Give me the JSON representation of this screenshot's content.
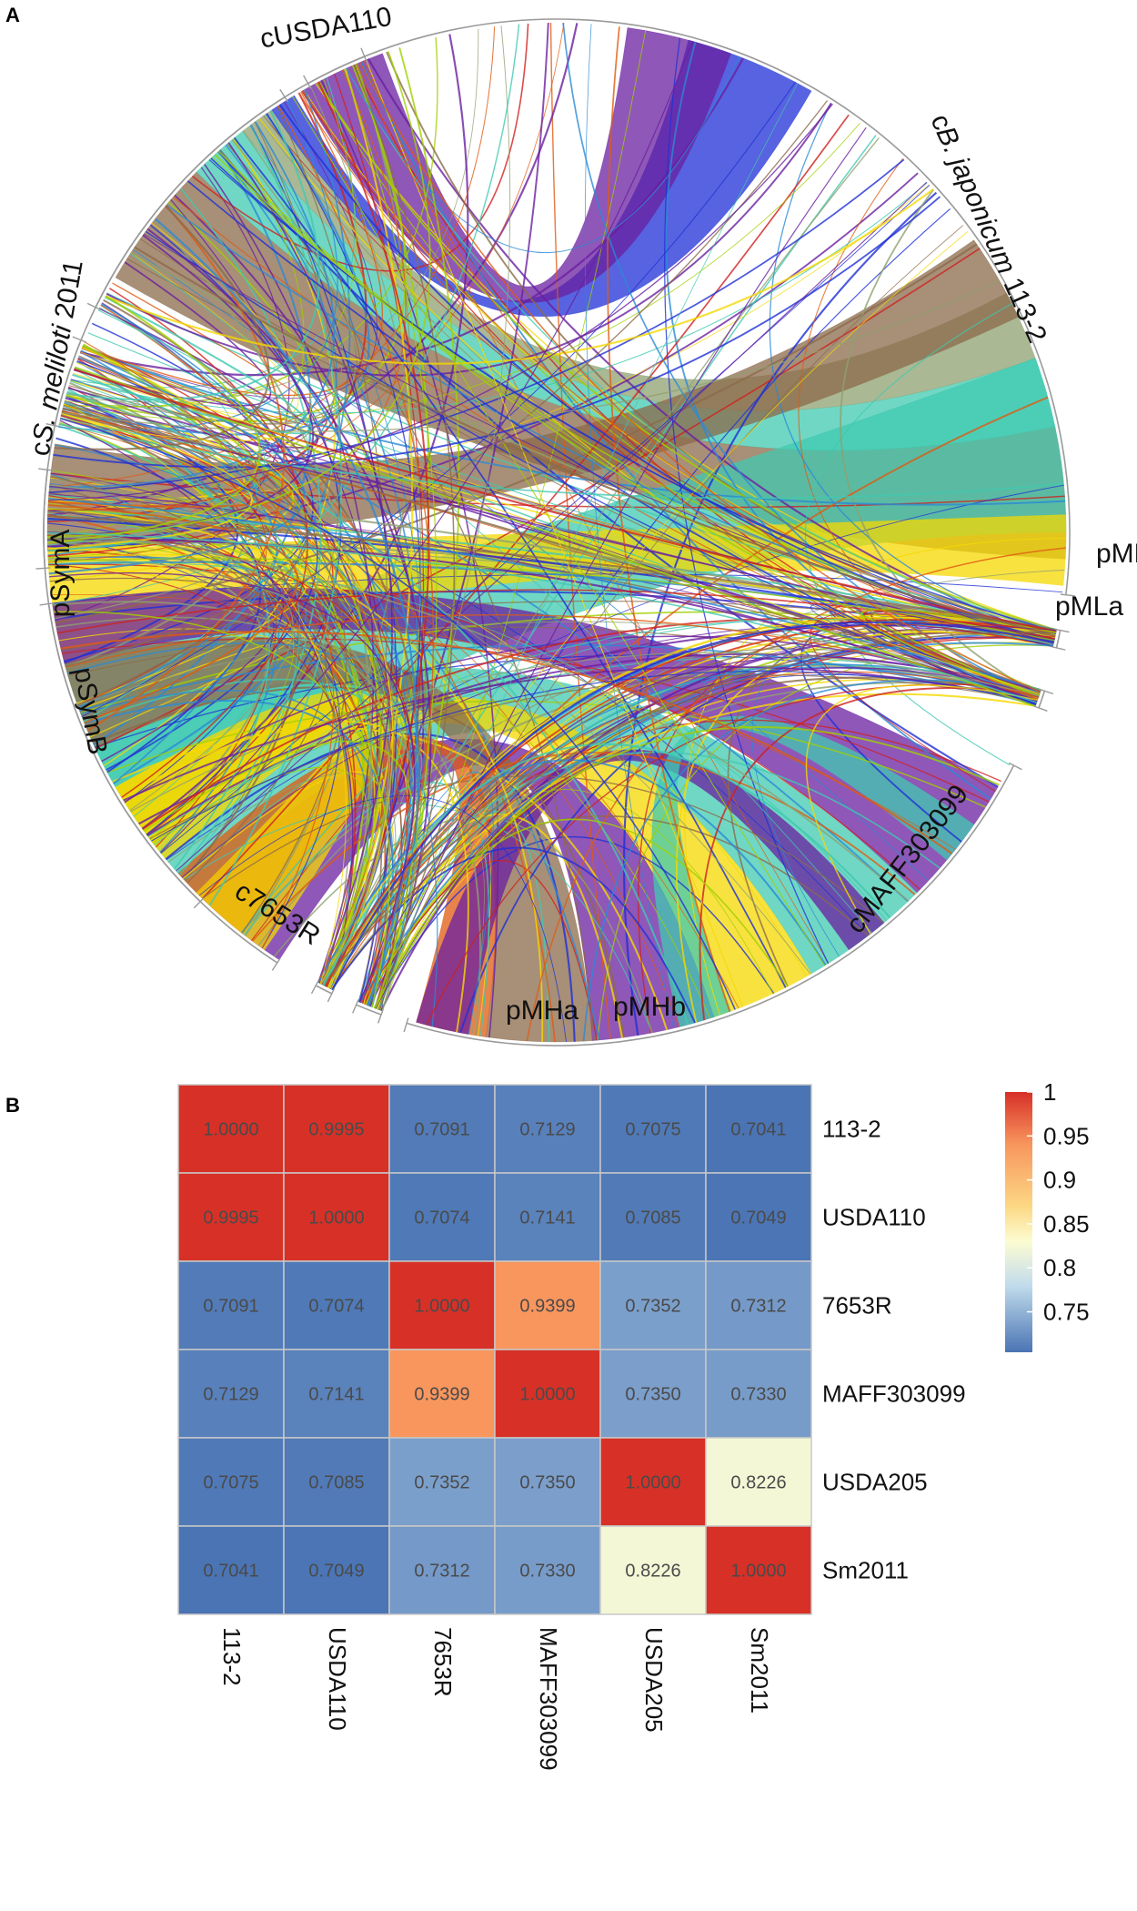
{
  "panels": {
    "a": "A",
    "b": "B"
  },
  "circos": {
    "segments": [
      {
        "label": "cUSDA110",
        "prefix": "",
        "italic": "",
        "suffix": ""
      },
      {
        "label": "",
        "prefix": "c",
        "italic": "B. japonicum",
        "suffix": " 113-2"
      },
      {
        "label": "pMLb",
        "prefix": "",
        "italic": "",
        "suffix": ""
      },
      {
        "label": "pMLa",
        "prefix": "",
        "italic": "",
        "suffix": ""
      },
      {
        "label": "cMAFF303099",
        "prefix": "",
        "italic": "",
        "suffix": ""
      },
      {
        "label": "pMHb",
        "prefix": "",
        "italic": "",
        "suffix": ""
      },
      {
        "label": "pMHa",
        "prefix": "",
        "italic": "",
        "suffix": ""
      },
      {
        "label": "c7653R",
        "prefix": "",
        "italic": "",
        "suffix": ""
      },
      {
        "label": "pSymB",
        "prefix": "",
        "italic": "",
        "suffix": ""
      },
      {
        "label": "pSymA",
        "prefix": "",
        "italic": "",
        "suffix": ""
      },
      {
        "label": "",
        "prefix": "c",
        "italic": "S. meliloti",
        "suffix": " 2011"
      }
    ],
    "link_colors": [
      "#8b6a4a",
      "#40c9b0",
      "#f5d800",
      "#1f2fd6",
      "#6a1fa0",
      "#8ea070",
      "#e05a10",
      "#d0201e",
      "#2a8ad6",
      "#a0d000"
    ]
  },
  "chart_data": {
    "type": "heatmap",
    "rows": [
      "113-2",
      "USDA110",
      "7653R",
      "MAFF303099",
      "USDA205",
      "Sm2011"
    ],
    "columns": [
      "113-2",
      "USDA110",
      "7653R",
      "MAFF303099",
      "USDA205",
      "Sm2011"
    ],
    "values": [
      [
        "1.0000",
        "0.9995",
        "0.7091",
        "0.7129",
        "0.7075",
        "0.7041"
      ],
      [
        "0.9995",
        "1.0000",
        "0.7074",
        "0.7141",
        "0.7085",
        "0.7049"
      ],
      [
        "0.7091",
        "0.7074",
        "1.0000",
        "0.9399",
        "0.7352",
        "0.7312"
      ],
      [
        "0.7129",
        "0.7141",
        "0.9399",
        "1.0000",
        "0.7350",
        "0.7330"
      ],
      [
        "0.7075",
        "0.7085",
        "0.7352",
        "0.7350",
        "1.0000",
        "0.8226"
      ],
      [
        "0.7041",
        "0.7049",
        "0.7312",
        "0.7330",
        "0.8226",
        "1.0000"
      ]
    ],
    "colorbar": {
      "range": [
        0.704,
        1.0
      ],
      "ticks": [
        1,
        0.95,
        0.9,
        0.85,
        0.8,
        0.75
      ],
      "tick_labels": [
        "1",
        "0.95",
        "0.9",
        "0.85",
        "0.8",
        "0.75"
      ],
      "stops": [
        {
          "value": 0.704,
          "color": "#4a74b4"
        },
        {
          "value": 0.78,
          "color": "#c2dcec"
        },
        {
          "value": 0.83,
          "color": "#fcfcd2"
        },
        {
          "value": 0.87,
          "color": "#fcd884"
        },
        {
          "value": 0.94,
          "color": "#f8965e"
        },
        {
          "value": 1.0,
          "color": "#d73027"
        }
      ]
    }
  }
}
